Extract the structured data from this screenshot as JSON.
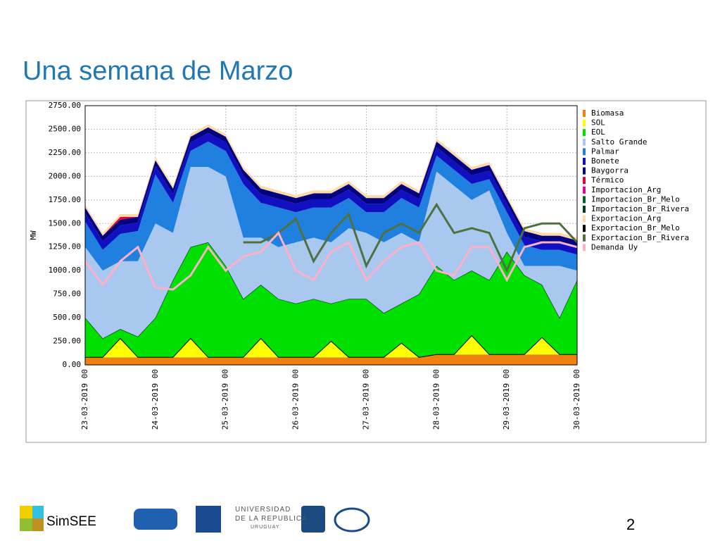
{
  "title": "Una semana de Marzo",
  "chart_data": {
    "type": "area",
    "stacked": true,
    "ylabel": "MW",
    "categories": [
      "23-03-2019 00",
      null,
      null,
      null,
      "24-03-2019 00",
      null,
      null,
      null,
      "25-03-2019 00",
      null,
      null,
      null,
      "26-03-2019 00",
      null,
      null,
      null,
      "27-03-2019 00",
      null,
      null,
      null,
      "28-03-2019 00",
      null,
      null,
      null,
      "29-03-2019 00",
      null,
      null,
      null,
      "30-03-2019 00"
    ],
    "ylim": [
      0,
      2750
    ],
    "yticks": [
      {
        "value": 0,
        "label": "0.00"
      },
      {
        "value": 250,
        "label": "250.00"
      },
      {
        "value": 500,
        "label": "500.00"
      },
      {
        "value": 750,
        "label": "750.00"
      },
      {
        "value": 1000,
        "label": "1000.00"
      },
      {
        "value": 1250,
        "label": "1250.00"
      },
      {
        "value": 1500,
        "label": "1500.00"
      },
      {
        "value": 1750,
        "label": "1750.00"
      },
      {
        "value": 2000,
        "label": "2000.00"
      },
      {
        "value": 2250,
        "label": "2250.00"
      },
      {
        "value": 2500,
        "label": "2500.00"
      },
      {
        "value": 2750,
        "label": "2750.00"
      }
    ],
    "grid": true,
    "legend": "right",
    "series": [
      {
        "name": "Biomasa",
        "color": "#f08010",
        "kind": "area",
        "values": [
          80,
          80,
          80,
          80,
          80,
          80,
          80,
          80,
          80,
          80,
          80,
          80,
          80,
          80,
          80,
          80,
          80,
          80,
          80,
          80,
          110,
          110,
          110,
          110,
          110,
          110,
          110,
          110,
          110
        ]
      },
      {
        "name": "SOL",
        "color": "#ffff00",
        "kind": "area",
        "values": [
          0,
          0,
          200,
          0,
          0,
          0,
          200,
          0,
          0,
          0,
          200,
          0,
          0,
          0,
          170,
          0,
          0,
          0,
          150,
          0,
          0,
          0,
          200,
          0,
          0,
          0,
          180,
          0,
          0
        ]
      },
      {
        "name": "EOL",
        "color": "#00e000",
        "kind": "area",
        "values": [
          420,
          200,
          100,
          220,
          420,
          820,
          970,
          1220,
          970,
          620,
          570,
          620,
          570,
          620,
          400,
          620,
          620,
          470,
          420,
          670,
          940,
          790,
          690,
          790,
          1090,
          840,
          560,
          390,
          790
        ]
      },
      {
        "name": "Salto Grande",
        "color": "#a8c8f0",
        "kind": "area",
        "values": [
          750,
          720,
          720,
          800,
          1000,
          500,
          850,
          800,
          950,
          650,
          500,
          550,
          650,
          650,
          650,
          750,
          700,
          750,
          750,
          550,
          1000,
          1000,
          750,
          950,
          200,
          100,
          200,
          550,
          100
        ]
      },
      {
        "name": "Palmar",
        "color": "#2080e0",
        "kind": "area",
        "values": [
          270,
          220,
          290,
          320,
          520,
          320,
          170,
          270,
          270,
          570,
          370,
          420,
          320,
          320,
          370,
          320,
          220,
          320,
          370,
          370,
          170,
          170,
          170,
          120,
          220,
          220,
          170,
          170,
          170
        ]
      },
      {
        "name": "Bonete",
        "color": "#1010c0",
        "kind": "area",
        "values": [
          90,
          90,
          90,
          90,
          90,
          90,
          90,
          90,
          90,
          90,
          90,
          90,
          90,
          90,
          90,
          90,
          90,
          90,
          90,
          90,
          90,
          90,
          90,
          90,
          90,
          90,
          90,
          90,
          90
        ]
      },
      {
        "name": "Baygorra",
        "color": "#000080",
        "kind": "area",
        "values": [
          60,
          60,
          60,
          60,
          60,
          60,
          60,
          60,
          60,
          60,
          60,
          60,
          60,
          60,
          60,
          60,
          60,
          60,
          60,
          60,
          60,
          60,
          60,
          60,
          60,
          60,
          60,
          60,
          60
        ]
      },
      {
        "name": "Térmico",
        "color": "#e00040",
        "kind": "area",
        "values": [
          0,
          0,
          30,
          0,
          0,
          0,
          0,
          0,
          0,
          0,
          0,
          0,
          0,
          0,
          0,
          0,
          0,
          0,
          0,
          0,
          0,
          0,
          0,
          0,
          0,
          0,
          0,
          0,
          0
        ]
      },
      {
        "name": "Importacion_Arg",
        "color": "#e000a0",
        "kind": "area",
        "values": [
          0,
          0,
          0,
          0,
          0,
          0,
          0,
          0,
          0,
          0,
          0,
          0,
          0,
          0,
          0,
          0,
          0,
          0,
          0,
          0,
          0,
          0,
          0,
          0,
          0,
          0,
          0,
          0,
          0
        ]
      },
      {
        "name": "Importacion_Br_Melo",
        "color": "#006030",
        "kind": "area",
        "values": [
          0,
          0,
          0,
          0,
          0,
          0,
          0,
          0,
          0,
          0,
          0,
          0,
          0,
          0,
          0,
          0,
          0,
          0,
          0,
          0,
          0,
          0,
          0,
          0,
          0,
          0,
          0,
          0,
          0
        ]
      },
      {
        "name": "Importacion_Br_Rivera",
        "color": "#004020",
        "kind": "area",
        "values": [
          0,
          0,
          0,
          0,
          0,
          0,
          0,
          0,
          0,
          0,
          0,
          0,
          0,
          0,
          0,
          0,
          0,
          0,
          0,
          0,
          0,
          0,
          0,
          0,
          0,
          0,
          0,
          0,
          0
        ]
      },
      {
        "name": "Exportacion_Arg",
        "color": "#ffd8a8",
        "kind": "area",
        "values": [
          30,
          30,
          30,
          30,
          30,
          30,
          30,
          30,
          30,
          30,
          30,
          30,
          30,
          30,
          30,
          30,
          30,
          30,
          30,
          30,
          30,
          30,
          30,
          30,
          30,
          30,
          30,
          30,
          30
        ]
      },
      {
        "name": "Exportacion_Br_Melo",
        "color": "#000000",
        "kind": "area",
        "values": [
          0,
          0,
          0,
          0,
          0,
          0,
          0,
          0,
          0,
          0,
          0,
          0,
          0,
          0,
          0,
          0,
          0,
          0,
          0,
          0,
          0,
          0,
          0,
          0,
          0,
          0,
          0,
          0,
          0
        ]
      },
      {
        "name": "Exportacion_Br_Rivera",
        "color": "#507040",
        "kind": "line",
        "values": [
          null,
          null,
          null,
          null,
          null,
          null,
          null,
          null,
          null,
          1300,
          1300,
          1400,
          1550,
          1100,
          1400,
          1600,
          1050,
          1400,
          1500,
          1400,
          1700,
          1400,
          1450,
          1400,
          1000,
          1450,
          1500,
          1500,
          1300
        ]
      },
      {
        "name": "Demanda Uy",
        "color": "#ffb0c8",
        "kind": "line",
        "values": [
          1100,
          850,
          1100,
          1250,
          820,
          800,
          950,
          1250,
          1000,
          1150,
          1200,
          1400,
          1000,
          900,
          1200,
          1300,
          900,
          1100,
          1250,
          1300,
          1000,
          950,
          1250,
          1250,
          900,
          1250,
          1300,
          1300,
          1250
        ]
      }
    ]
  },
  "footer": {
    "brand": "SimSEE",
    "page": "2",
    "university": [
      "UNIVERSIDAD",
      "DE LA REPUBLICA",
      "URUGUAY"
    ]
  }
}
